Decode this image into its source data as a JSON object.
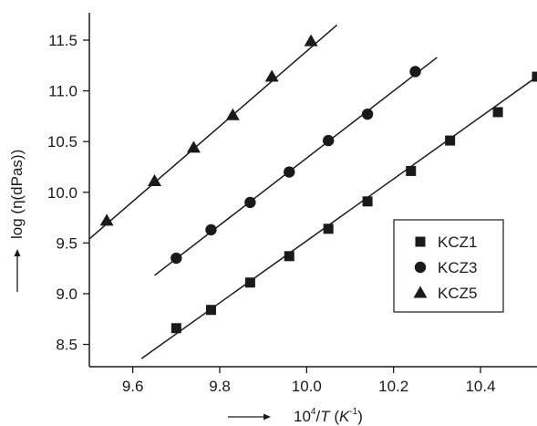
{
  "chart_data": {
    "type": "scatter",
    "xlabel": {
      "base": "10",
      "exp": "4",
      "slash": "/",
      "var": "T",
      "unit_open": " (",
      "unit_var": "K",
      "unit_exp": "-1",
      "unit_close": ")"
    },
    "ylabel": "log (η(dPas))",
    "xlim": [
      9.5,
      10.53
    ],
    "ylim": [
      8.28,
      11.77
    ],
    "x_ticks": [
      9.6,
      9.8,
      10.0,
      10.2,
      10.4
    ],
    "x_tick_labels": [
      "9.6",
      "9.8",
      "10.0",
      "10.2",
      "10.4"
    ],
    "y_ticks": [
      8.5,
      9.0,
      9.5,
      10.0,
      10.5,
      11.0,
      11.5
    ],
    "y_tick_labels": [
      "8.5",
      "9.0",
      "9.5",
      "10.0",
      "10.5",
      "11.0",
      "11.5"
    ],
    "grid": false,
    "legend_position": "right-middle",
    "series": [
      {
        "name": "KCZ1",
        "marker": "square",
        "x": [
          9.7,
          9.78,
          9.87,
          9.96,
          10.05,
          10.14,
          10.24,
          10.33,
          10.44,
          10.53
        ],
        "y": [
          8.66,
          8.84,
          9.11,
          9.37,
          9.64,
          9.91,
          10.21,
          10.51,
          10.79,
          11.14
        ],
        "fit": {
          "x": [
            9.62,
            10.53
          ],
          "y": [
            8.36,
            11.14
          ]
        }
      },
      {
        "name": "KCZ3",
        "marker": "circle",
        "x": [
          9.7,
          9.78,
          9.87,
          9.96,
          10.05,
          10.14,
          10.25
        ],
        "y": [
          9.35,
          9.63,
          9.9,
          10.2,
          10.51,
          10.77,
          11.19
        ],
        "fit": {
          "x": [
            9.65,
            10.3
          ],
          "y": [
            9.18,
            11.33
          ]
        }
      },
      {
        "name": "KCZ5",
        "marker": "triangle",
        "x": [
          9.54,
          9.65,
          9.74,
          9.83,
          9.92,
          10.01
        ],
        "y": [
          9.72,
          10.11,
          10.44,
          10.76,
          11.14,
          11.49
        ],
        "fit": {
          "x": [
            9.5,
            10.07
          ],
          "y": [
            9.54,
            11.65
          ]
        }
      }
    ]
  }
}
